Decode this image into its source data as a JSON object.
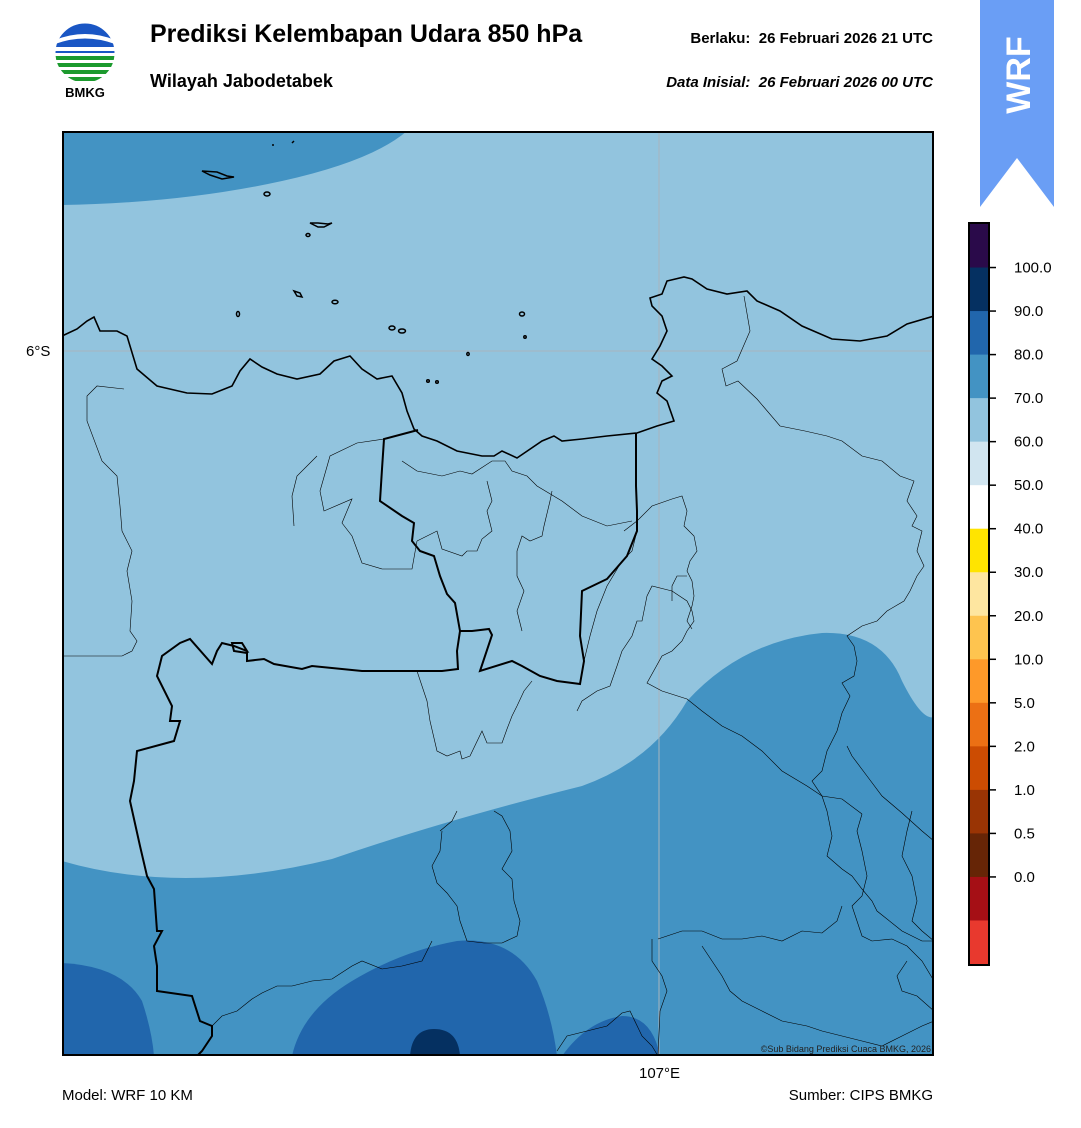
{
  "header": {
    "title": "Prediksi Kelembapan Udara 850 hPa",
    "subtitle": "Wilayah Jabodetabek",
    "valid_label": "Berlaku:",
    "valid_time": "26 Februari 2026 21 UTC",
    "init_label": "Data Inisial:",
    "init_time": "26 Februari 2026 00 UTC"
  },
  "logo": {
    "icon": "bmkg-logo-icon",
    "text": "BMKG"
  },
  "badge": {
    "text": "WRF",
    "color": "#6a9ef5"
  },
  "map": {
    "lat_label": "6°S",
    "lon_label": "107°E",
    "copyright": "©Sub Bidang Prediksi Cuaca BMKG, 2026",
    "field_colors": {
      "60-70": "#92c4de",
      "70-80": "#4393c3",
      "80-90": "#2166ac",
      "90-100": "#053061"
    }
  },
  "colorbar": {
    "ticks": [
      "100.0",
      "90.0",
      "80.0",
      "70.0",
      "60.0",
      "50.0",
      "40.0",
      "30.0",
      "20.0",
      "10.0",
      "5.0",
      "2.0",
      "1.0",
      "0.5",
      "0.0"
    ],
    "colors": [
      "#2a0a4a",
      "#053061",
      "#2166ac",
      "#4393c3",
      "#92c4de",
      "#d1e5f0",
      "#ffffff",
      "#ffe400",
      "#fee6a0",
      "#fec44f",
      "#fe9929",
      "#ec7014",
      "#cc4c02",
      "#993404",
      "#662506",
      "#a50f15",
      "#e8392e"
    ]
  },
  "footer": {
    "model": "Model: WRF 10 KM",
    "source": "Sumber: CIPS BMKG"
  }
}
